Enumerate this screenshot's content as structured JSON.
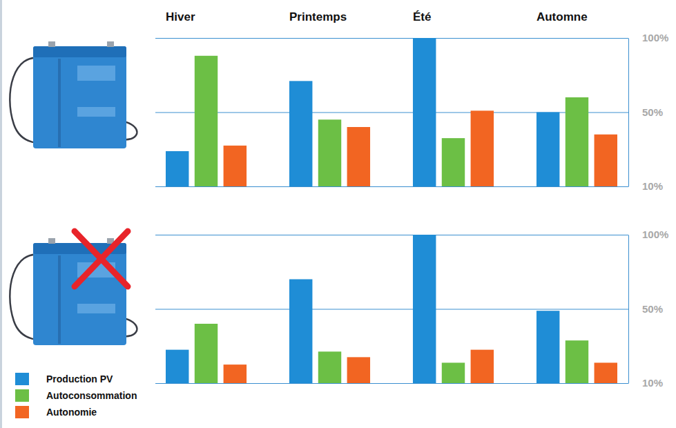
{
  "chart_data": [
    {
      "type": "bar",
      "categories": [
        "Hiver",
        "Printemps",
        "Été",
        "Automne"
      ],
      "series": [
        {
          "name": "Production PV",
          "color": "#1f8dd6",
          "values": [
            29,
            71,
            100,
            50
          ]
        },
        {
          "name": "Autoconsommation",
          "color": "#6cbf45",
          "values": [
            88,
            46,
            36,
            60
          ]
        },
        {
          "name": "Autonomie",
          "color": "#f26522",
          "values": [
            32,
            42,
            51,
            38
          ]
        }
      ],
      "ylim": [
        10,
        100
      ],
      "yticks": [
        {
          "value": 10,
          "label": "10%"
        },
        {
          "value": 50,
          "label": "50%"
        },
        {
          "value": 100,
          "label": "100%"
        }
      ],
      "grid": true,
      "legend": "bottom left"
    },
    {
      "type": "bar",
      "categories": [
        null,
        null,
        null,
        null
      ],
      "series": [
        {
          "color": "#1f8dd6",
          "values": [
            28,
            70,
            100,
            49
          ]
        },
        {
          "color": "#6cbf45",
          "values": [
            42,
            27,
            21,
            33
          ]
        },
        {
          "color": "#f26522",
          "values": [
            20,
            24,
            28,
            21
          ]
        }
      ],
      "ylim": [
        10,
        100
      ],
      "yticks": [
        {
          "value": 10,
          "label": "10%"
        },
        {
          "value": 50,
          "label": "50%"
        },
        {
          "value": 100,
          "label": "100%"
        }
      ],
      "grid": true
    }
  ]
}
